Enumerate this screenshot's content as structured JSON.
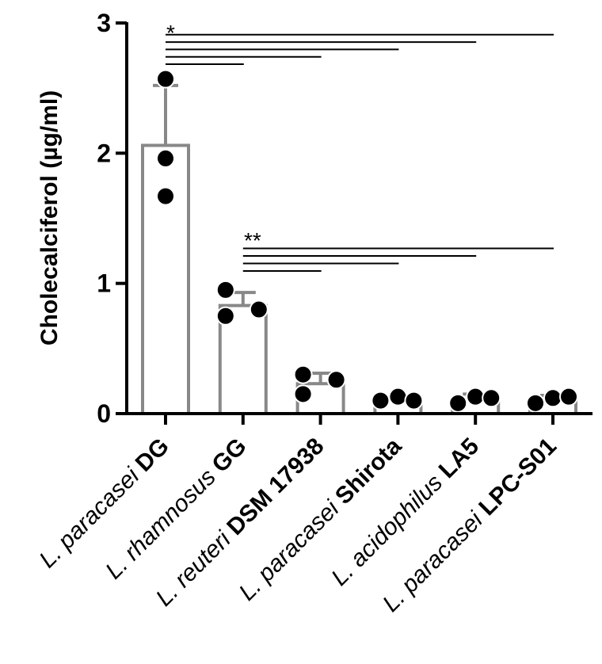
{
  "chart_data": {
    "type": "bar",
    "ylabel": "Cholecalciferol (µg/ml)",
    "ylim": [
      0,
      3
    ],
    "yticks": [
      0,
      1,
      2,
      3
    ],
    "grid": false,
    "bar_color": "#888888",
    "point_color": "#000000",
    "categories": [
      {
        "species": "L. paracasei",
        "strain": "DG"
      },
      {
        "species": "L. rhamnosus",
        "strain": "GG"
      },
      {
        "species": "L. reuteri",
        "strain": "DSM 17938"
      },
      {
        "species": "L. paracasei",
        "strain": "Shirota"
      },
      {
        "species": "L. acidophilus",
        "strain": "LA5"
      },
      {
        "species": "L. paracasei",
        "strain": "LPC-S01"
      }
    ],
    "means": [
      2.06,
      0.83,
      0.23,
      0.11,
      0.11,
      0.11
    ],
    "sd": [
      0.46,
      0.1,
      0.08,
      0.02,
      0.04,
      0.03
    ],
    "points": [
      [
        2.57,
        1.96,
        1.67
      ],
      [
        0.95,
        0.75,
        0.8
      ],
      [
        0.3,
        0.15,
        0.26
      ],
      [
        0.1,
        0.13,
        0.1
      ],
      [
        0.08,
        0.13,
        0.12
      ],
      [
        0.08,
        0.12,
        0.13
      ]
    ],
    "significance": [
      {
        "label": "*",
        "from": 0,
        "to": [
          1,
          2,
          3,
          4,
          5
        ]
      },
      {
        "label": "**",
        "from": 1,
        "to": [
          2,
          3,
          4,
          5
        ]
      }
    ]
  }
}
